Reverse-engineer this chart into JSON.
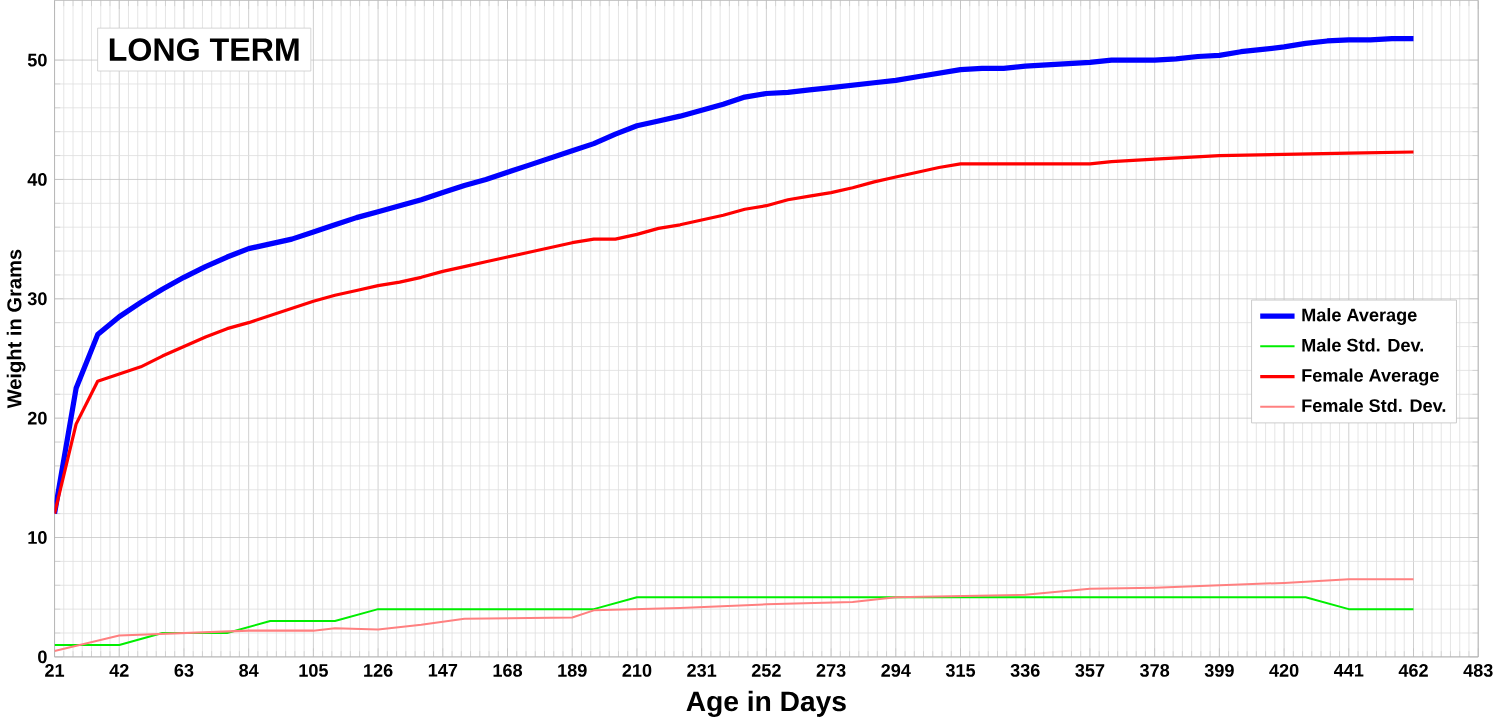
{
  "chart_data": {
    "type": "line",
    "title": "LONG TERM",
    "xlabel": "Age in Days",
    "ylabel": "Weight in Grams",
    "xlim": [
      21,
      483
    ],
    "xticks": [
      21,
      42,
      63,
      84,
      105,
      126,
      147,
      168,
      189,
      210,
      231,
      252,
      273,
      294,
      315,
      336,
      357,
      378,
      399,
      420,
      441,
      462,
      483
    ],
    "ylim": [
      0,
      55
    ],
    "yticks": [
      0,
      10,
      20,
      30,
      40,
      50
    ],
    "grid": true,
    "legend": "right",
    "marker": "none",
    "line_style": "solid",
    "series": [
      {
        "name": "Male Average",
        "color": "#0000ff",
        "x": [
          21,
          28,
          35,
          42,
          49,
          56,
          63,
          70,
          77,
          84,
          91,
          98,
          105,
          112,
          119,
          126,
          133,
          140,
          147,
          154,
          161,
          168,
          175,
          182,
          189,
          196,
          203,
          210,
          217,
          224,
          231,
          238,
          245,
          252,
          259,
          266,
          273,
          280,
          287,
          294,
          301,
          308,
          315,
          322,
          329,
          336,
          343,
          350,
          357,
          364,
          371,
          378,
          385,
          392,
          399,
          406,
          413,
          420,
          427,
          434,
          441,
          448,
          455,
          462
        ],
        "values": [
          12,
          22.5,
          27,
          28.5,
          29.7,
          30.8,
          31.8,
          32.7,
          33.5,
          34.2,
          34.6,
          35,
          35.6,
          36.2,
          36.8,
          37.3,
          37.8,
          38.3,
          38.9,
          39.5,
          40,
          40.6,
          41.2,
          41.8,
          42.4,
          43,
          43.8,
          44.5,
          44.9,
          45.3,
          45.8,
          46.3,
          46.9,
          47.2,
          47.3,
          47.5,
          47.7,
          47.9,
          48.1,
          48.3,
          48.6,
          48.9,
          49.2,
          49.3,
          49.3,
          49.5,
          49.6,
          49.7,
          49.8,
          50,
          50,
          50,
          50.1,
          50.3,
          50.4,
          50.7,
          50.9,
          51.1,
          51.4,
          51.6,
          51.7,
          51.7,
          51.8,
          51.8
        ]
      },
      {
        "name": "Male Std. Dev.",
        "color": "#00ee00",
        "x": [
          21,
          42,
          56,
          77,
          91,
          112,
          126,
          196,
          210,
          427,
          441,
          462
        ],
        "values": [
          1,
          1,
          2,
          2,
          3,
          3,
          4,
          4,
          5,
          5,
          4,
          4
        ]
      },
      {
        "name": "Female Average",
        "color": "#ff0000",
        "x": [
          21,
          28,
          35,
          42,
          49,
          56,
          63,
          70,
          77,
          84,
          91,
          98,
          105,
          112,
          119,
          126,
          133,
          140,
          147,
          154,
          161,
          168,
          175,
          182,
          189,
          196,
          203,
          210,
          217,
          224,
          231,
          238,
          245,
          252,
          259,
          266,
          273,
          280,
          287,
          294,
          301,
          308,
          315,
          336,
          357,
          364,
          378,
          399,
          420,
          441,
          462
        ],
        "values": [
          12,
          19.5,
          23.1,
          23.7,
          24.3,
          25.2,
          26,
          26.8,
          27.5,
          28,
          28.6,
          29.2,
          29.8,
          30.3,
          30.7,
          31.1,
          31.4,
          31.8,
          32.3,
          32.7,
          33.1,
          33.5,
          33.9,
          34.3,
          34.7,
          35,
          35,
          35.4,
          35.9,
          36.2,
          36.6,
          37,
          37.5,
          37.8,
          38.3,
          38.6,
          38.9,
          39.3,
          39.8,
          40.2,
          40.6,
          41,
          41.3,
          41.3,
          41.3,
          41.5,
          41.7,
          42,
          42.1,
          42.2,
          42.3
        ]
      },
      {
        "name": "Female Std. Dev.",
        "color": "#ff8080",
        "x": [
          21,
          42,
          63,
          84,
          105,
          112,
          126,
          140,
          154,
          189,
          196,
          224,
          252,
          280,
          294,
          336,
          357,
          378,
          399,
          420,
          441,
          462
        ],
        "values": [
          0.5,
          1.8,
          2,
          2.2,
          2.2,
          2.4,
          2.3,
          2.7,
          3.2,
          3.3,
          3.9,
          4.1,
          4.4,
          4.6,
          5,
          5.2,
          5.7,
          5.8,
          6,
          6.2,
          6.5,
          6.5
        ]
      }
    ]
  }
}
